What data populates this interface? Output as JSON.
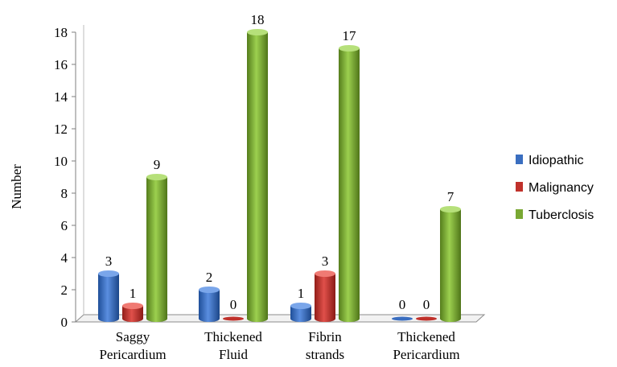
{
  "chart_data": {
    "type": "bar",
    "title": "",
    "xlabel": "",
    "ylabel": "Number",
    "ylim": [
      0,
      18
    ],
    "yticks": [
      0,
      2,
      4,
      6,
      8,
      10,
      12,
      14,
      16,
      18
    ],
    "categories": [
      [
        "Saggy",
        "Pericardium"
      ],
      [
        "Thickened",
        "Fluid"
      ],
      [
        "Fibrin",
        "strands"
      ],
      [
        "Thickened",
        "Pericardium"
      ]
    ],
    "series": [
      {
        "name": "Idiopathic",
        "values": [
          3,
          2,
          1,
          0
        ],
        "color": "#3a6ec0"
      },
      {
        "name": "Malignancy",
        "values": [
          1,
          0,
          3,
          0
        ],
        "color": "#c0312b"
      },
      {
        "name": "Tuberclosis",
        "values": [
          9,
          18,
          17,
          7
        ],
        "color": "#79a833"
      }
    ],
    "legend_position": "right",
    "grid": false,
    "style": "3d-cylinder"
  }
}
